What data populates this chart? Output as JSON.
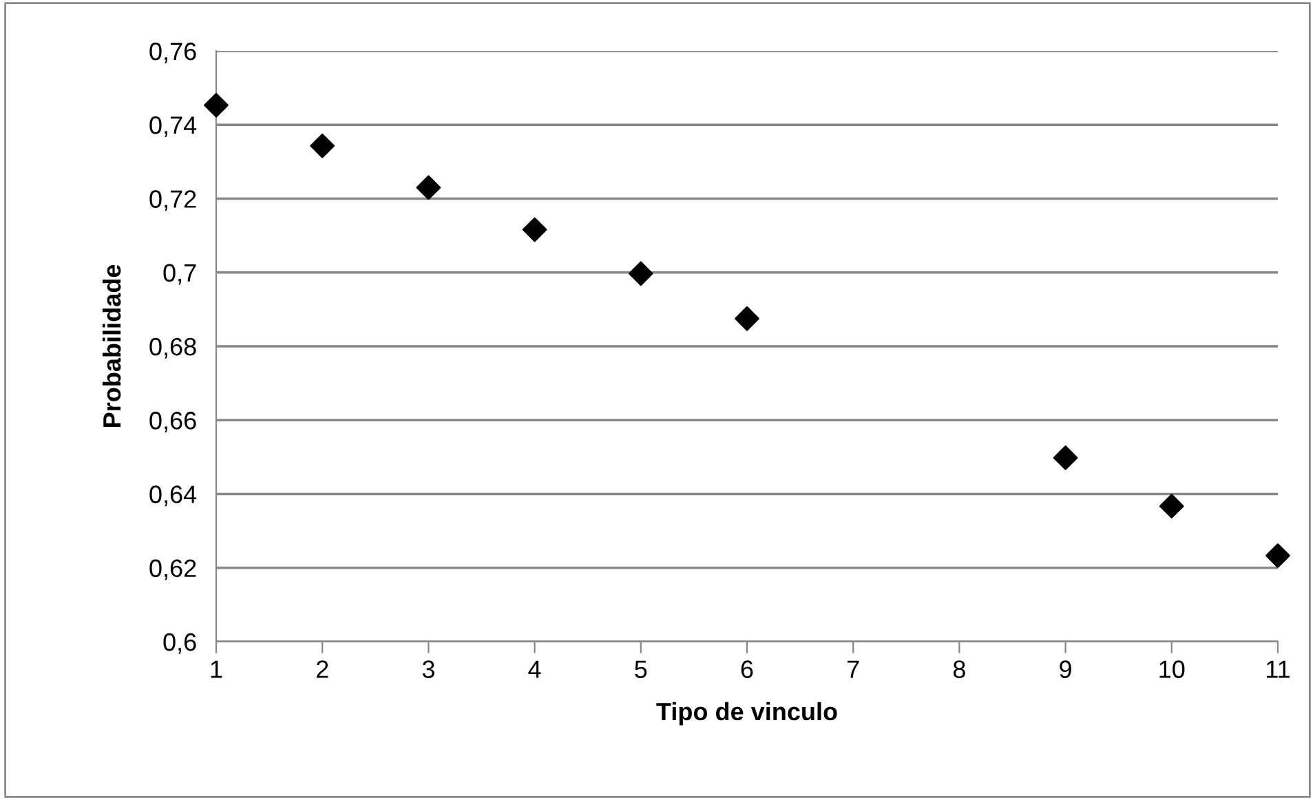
{
  "chart_data": {
    "type": "scatter",
    "xlabel": "Tipo de vinculo",
    "ylabel": "Probabilidade",
    "x": [
      1,
      2,
      3,
      4,
      5,
      6,
      9,
      10,
      11
    ],
    "series": [
      {
        "color": "#000000",
        "values": [
          0.7453,
          0.7343,
          0.723,
          0.7116,
          0.6997,
          0.6875,
          0.6498,
          0.6367,
          0.6233
        ]
      }
    ],
    "xlim": [
      1,
      11
    ],
    "xticks": [
      1,
      2,
      3,
      4,
      5,
      6,
      7,
      8,
      9,
      10,
      11
    ],
    "ylim": [
      0.6,
      0.76
    ],
    "yticks": [
      {
        "value": 0.6,
        "label": "0,6"
      },
      {
        "value": 0.62,
        "label": "0,62"
      },
      {
        "value": 0.64,
        "label": "0,64"
      },
      {
        "value": 0.66,
        "label": "0,66"
      },
      {
        "value": 0.68,
        "label": "0,68"
      },
      {
        "value": 0.7,
        "label": "0,7"
      },
      {
        "value": 0.72,
        "label": "0,72"
      },
      {
        "value": 0.74,
        "label": "0,74"
      },
      {
        "value": 0.76,
        "label": "0,76"
      }
    ],
    "grid": "y",
    "marker": "diamond",
    "legend": false
  }
}
